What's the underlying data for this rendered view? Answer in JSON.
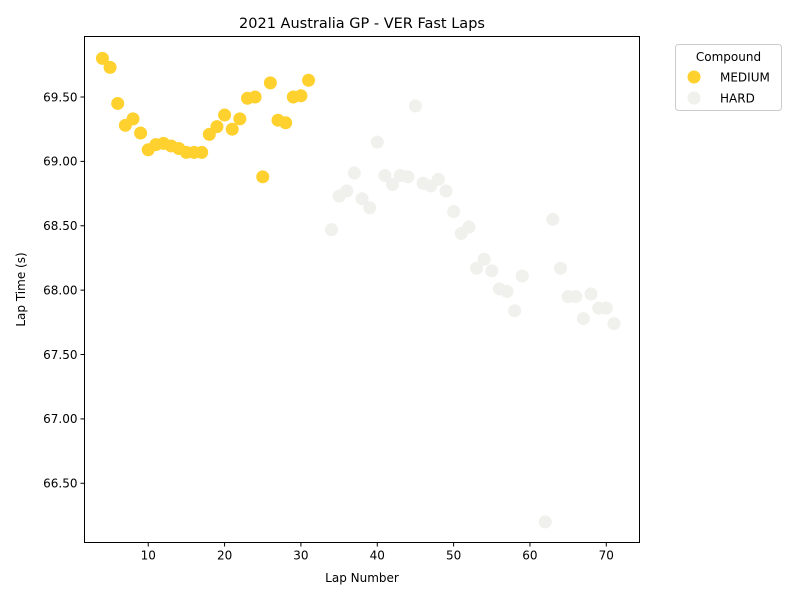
{
  "chart_data": {
    "type": "scatter",
    "title": "2021 Australia GP - VER Fast Laps",
    "xlabel": "Lap Number",
    "ylabel": "Lap Time (s)",
    "xlim": [
      1.65,
      74.35
    ],
    "ylim": [
      66.04,
      69.97
    ],
    "x_ticks": [
      10,
      20,
      30,
      40,
      50,
      60,
      70
    ],
    "y_ticks": [
      66.5,
      67.0,
      67.5,
      68.0,
      68.5,
      69.0,
      69.5
    ],
    "y_tick_labels": [
      "66.50",
      "67.00",
      "67.50",
      "68.00",
      "68.50",
      "69.00",
      "69.50"
    ],
    "grid": false,
    "legend": {
      "title": "Compound",
      "placement": "outside-top-right"
    },
    "series": [
      {
        "name": "MEDIUM",
        "color": "#FFD12E",
        "x": [
          4,
          5,
          6,
          7,
          8,
          9,
          10,
          11,
          12,
          13,
          14,
          15,
          16,
          17,
          18,
          19,
          20,
          21,
          22,
          23,
          24,
          25,
          26,
          27,
          28,
          29,
          30,
          31
        ],
        "y": [
          69.8,
          69.73,
          69.45,
          69.28,
          69.33,
          69.22,
          69.09,
          69.13,
          69.14,
          69.12,
          69.1,
          69.07,
          69.07,
          69.07,
          69.21,
          69.27,
          69.36,
          69.25,
          69.33,
          69.49,
          69.5,
          68.88,
          69.61,
          69.32,
          69.3,
          69.5,
          69.51,
          69.63
        ]
      },
      {
        "name": "HARD",
        "color": "#F0F0EC",
        "x": [
          34,
          35,
          36,
          37,
          38,
          39,
          40,
          41,
          42,
          43,
          44,
          45,
          46,
          47,
          48,
          49,
          50,
          51,
          52,
          53,
          54,
          55,
          56,
          57,
          58,
          59,
          62,
          63,
          64,
          65,
          66,
          67,
          68,
          69,
          70,
          71
        ],
        "y": [
          68.47,
          68.73,
          68.77,
          68.91,
          68.71,
          68.64,
          69.15,
          68.89,
          68.82,
          68.89,
          68.88,
          69.43,
          68.83,
          68.81,
          68.86,
          68.77,
          68.61,
          68.44,
          68.49,
          68.17,
          68.24,
          68.15,
          68.01,
          67.99,
          67.84,
          68.11,
          66.2,
          68.55,
          68.17,
          67.95,
          67.95,
          67.78,
          67.97,
          67.86,
          67.86,
          67.74
        ]
      }
    ]
  }
}
